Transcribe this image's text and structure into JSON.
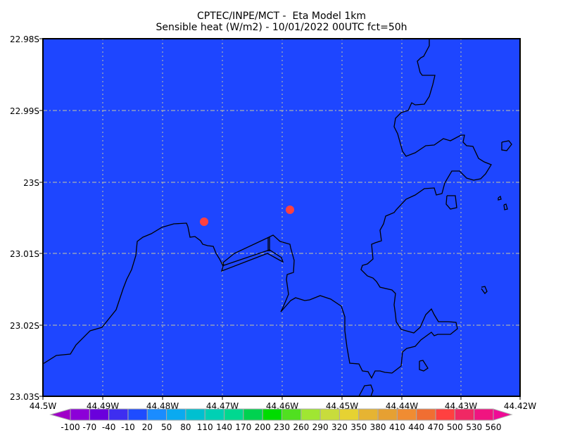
{
  "title": {
    "line1": "CPTEC/INPE/MCT -  Eta Model 1km",
    "line2": "Sensible heat (W/m2) - 10/01/2022 00UTC fct=50h"
  },
  "map": {
    "background_color": "#1e46ff",
    "coast_color": "#000000",
    "grid_color": "#c8c8a0",
    "marker_color": "#ff4040",
    "y_axis_labels": [
      "22.98S",
      "22.99S",
      "23S",
      "23.01S",
      "23.02S",
      "23.03S"
    ],
    "x_axis_labels": [
      "44.5W",
      "44.49W",
      "44.48W",
      "44.47W",
      "44.46W",
      "44.45W",
      "44.44W",
      "44.43W",
      "44.42W"
    ],
    "markers": [
      {
        "name": "station-1"
      },
      {
        "name": "station-2"
      }
    ]
  },
  "colorbar": {
    "labels": [
      "-100",
      "-70",
      "-40",
      "-10",
      "20",
      "50",
      "80",
      "110",
      "140",
      "170",
      "200",
      "230",
      "260",
      "290",
      "320",
      "350",
      "380",
      "410",
      "440",
      "470",
      "500",
      "530",
      "560"
    ],
    "under_color": "#a000c8",
    "over_color": "#f00a96",
    "colors": [
      "#8c00d8",
      "#6a00dc",
      "#3e2ef0",
      "#1e4cff",
      "#1a8cff",
      "#0aaaf0",
      "#00c0d0",
      "#00d0b4",
      "#00d890",
      "#00d250",
      "#00dc00",
      "#50e020",
      "#a0e632",
      "#c8dc3c",
      "#e6d232",
      "#e6b432",
      "#e6a032",
      "#f08c32",
      "#f06e32",
      "#ff4040",
      "#f02864",
      "#f01480"
    ]
  }
}
